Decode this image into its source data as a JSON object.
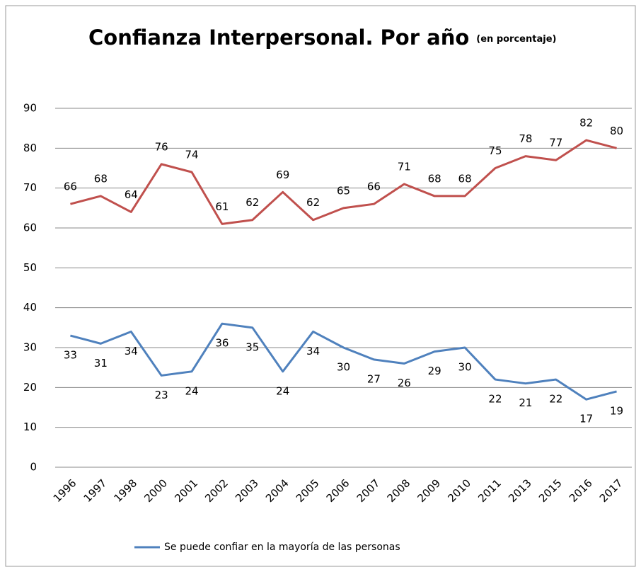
{
  "chart_data": {
    "type": "line",
    "title": "Confianza Interpersonal. Por año",
    "subtitle": "(en porcentaje)",
    "categories": [
      "1996",
      "1997",
      "1998",
      "2000",
      "2001",
      "2002",
      "2003",
      "2004",
      "2005",
      "2006",
      "2007",
      "2008",
      "2009",
      "2010",
      "2011",
      "2013",
      "2015",
      "2016",
      "2017"
    ],
    "series": [
      {
        "color": "#c0504d",
        "values": [
          66,
          68,
          64,
          76,
          74,
          61,
          62,
          69,
          62,
          65,
          66,
          71,
          68,
          68,
          75,
          78,
          77,
          82,
          80
        ]
      },
      {
        "name": "Se puede confiar en la mayoría de las personas",
        "color": "#4f81bd",
        "values": [
          33,
          31,
          34,
          23,
          24,
          36,
          35,
          24,
          34,
          30,
          27,
          26,
          29,
          30,
          22,
          21,
          22,
          17,
          19
        ]
      }
    ],
    "ylim": [
      0,
      90
    ],
    "yticks": [
      0,
      10,
      20,
      30,
      40,
      50,
      60,
      70,
      80,
      90
    ],
    "grid": true,
    "legend": "bottom"
  }
}
